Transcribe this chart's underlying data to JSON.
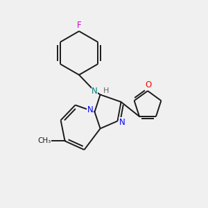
{
  "bg_color": "#f0f0f0",
  "bond_color": "#1a1a1a",
  "n_color": "#0000ff",
  "o_color": "#ff0000",
  "f_color": "#cc00cc",
  "nh_color": "#008080",
  "h_color": "#666666",
  "figsize": [
    3.0,
    3.0
  ],
  "dpi": 100,
  "xlim": [
    0,
    10
  ],
  "ylim": [
    0,
    10
  ],
  "lw": 1.4,
  "dbl_off": 0.13
}
